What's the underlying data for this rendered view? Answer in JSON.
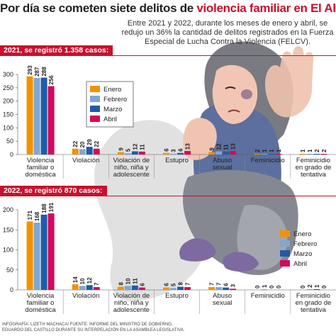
{
  "title_part1": "Por día se cometen siete delitos de ",
  "title_part2": "violencia familiar en El Alto",
  "subtitle": "Entre 2021 y 2022, durante los meses de enero y abril, se redujo un 36% la cantidad de delitos registrados en la Fuerza Especial de Lucha Contra la Violencia (FELCV).",
  "section_2021": "2021, se registró 1.358 casos:",
  "section_2022": "2022, se registró 870 casos:",
  "credit_line1": "INFOGRAFÍA: LIZETH MACHACA/ FUENTE: INFORME DEL MINISTRO DE GOBIERNO,",
  "credit_line2": "EDUARDO DEL CASTILLO DURANTE SU INTERPELACIÓN EN LA ASAMBLEA LEGISLATIVA.",
  "colors": {
    "enero": "#f39200",
    "febrero": "#7fa7d1",
    "marzo": "#1f5ba8",
    "abril": "#d6085a",
    "accent": "#c8102e"
  },
  "chart_data": [
    {
      "type": "bar",
      "title": "2021, se registró 1.358 casos:",
      "ylim": [
        0,
        300
      ],
      "yticks": [
        0,
        50,
        100,
        150,
        200,
        250,
        300
      ],
      "grid": false,
      "legend_position": "top-left",
      "categories": [
        [
          "Violencia",
          "familiar o",
          "doméstica"
        ],
        [
          "Violación"
        ],
        [
          "Violación de",
          "niño, niña y",
          "adolescente"
        ],
        [
          "Estupro"
        ],
        [
          "Abuso",
          "sexual"
        ],
        [
          "Feminicidio"
        ],
        [
          "Feminicidio",
          "en grado de",
          "tentativa"
        ]
      ],
      "series": [
        {
          "name": "Enero",
          "values": [
            293,
            22,
            9,
            6,
            9,
            2,
            1
          ]
        },
        {
          "name": "Febrero",
          "values": [
            287,
            20,
            5,
            3,
            12,
            1,
            1
          ]
        },
        {
          "name": "Marzo",
          "values": [
            288,
            29,
            12,
            6,
            11,
            1,
            2
          ]
        },
        {
          "name": "Abril",
          "values": [
            256,
            22,
            11,
            13,
            13,
            1,
            2
          ]
        }
      ]
    },
    {
      "type": "bar",
      "title": "2022, se registró 870 casos:",
      "ylim": [
        0,
        200
      ],
      "yticks": [
        0,
        50,
        100,
        150,
        200
      ],
      "grid": false,
      "legend_position": "right",
      "categories": [
        [
          "Violencia",
          "familiar o",
          "doméstica"
        ],
        [
          "Violación"
        ],
        [
          "Violación de",
          "niño, niña y",
          "adolescente"
        ],
        [
          "Estupro"
        ],
        [
          "Abuso",
          "sexual"
        ],
        [
          "Feminicidio"
        ],
        [
          "Feminicidio",
          "en grado de",
          "tentativa"
        ]
      ],
      "series": [
        {
          "name": "Enero",
          "values": [
            171,
            14,
            8,
            6,
            7,
            0,
            0
          ]
        },
        {
          "name": "Febrero",
          "values": [
            168,
            10,
            10,
            5,
            7,
            1,
            2
          ]
        },
        {
          "name": "Marzo",
          "values": [
            188,
            12,
            11,
            8,
            6,
            0,
            1
          ]
        },
        {
          "name": "Abril",
          "values": [
            191,
            7,
            6,
            7,
            3,
            0,
            0
          ]
        }
      ]
    }
  ]
}
